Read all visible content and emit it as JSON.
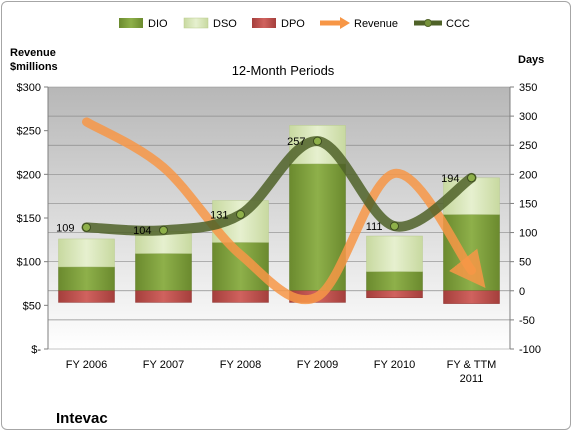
{
  "chart_data": {
    "type": "bar",
    "title": "12-Month Periods",
    "company": "Intevac",
    "y_left": {
      "label_line1": "Revenue",
      "label_line2": "$millions",
      "ticks": [
        "$-",
        "$50",
        "$100",
        "$150",
        "$200",
        "$250",
        "$300"
      ],
      "range": [
        0,
        300
      ]
    },
    "y_right": {
      "label": "Days",
      "ticks": [
        "-100",
        "-50",
        "0",
        "50",
        "100",
        "150",
        "200",
        "250",
        "300",
        "350"
      ],
      "range": [
        -100,
        350
      ]
    },
    "categories": [
      "FY 2006",
      "FY 2007",
      "FY 2008",
      "FY 2009",
      "FY 2010",
      "FY & TTM|2011"
    ],
    "legend": [
      "DIO",
      "DSO",
      "DPO",
      "Revenue",
      "CCC"
    ],
    "series": [
      {
        "name": "DIO",
        "axis": "right",
        "values": [
          41,
          64,
          83,
          218,
          33,
          131
        ]
      },
      {
        "name": "DSO",
        "axis": "right",
        "values": [
          48,
          38,
          72,
          66,
          61,
          63
        ]
      },
      {
        "name": "DPO",
        "axis": "right",
        "values": [
          -20,
          -20,
          -20,
          -20,
          -12,
          -22
        ]
      },
      {
        "name": "Revenue",
        "axis": "left",
        "values": [
          260,
          208,
          108,
          60,
          201,
          90
        ]
      },
      {
        "name": "CCC",
        "axis": "right",
        "values": [
          109,
          104,
          131,
          257,
          111,
          194
        ]
      }
    ],
    "colors": {
      "DIO": "#77933c",
      "DSO": "#d7e4bd",
      "DPO": "#c0504d",
      "Revenue": "#f79646",
      "CCC": "#4f6228",
      "plot_bg": "#bfbfbf"
    },
    "grid": true,
    "legend_position": "top"
  }
}
